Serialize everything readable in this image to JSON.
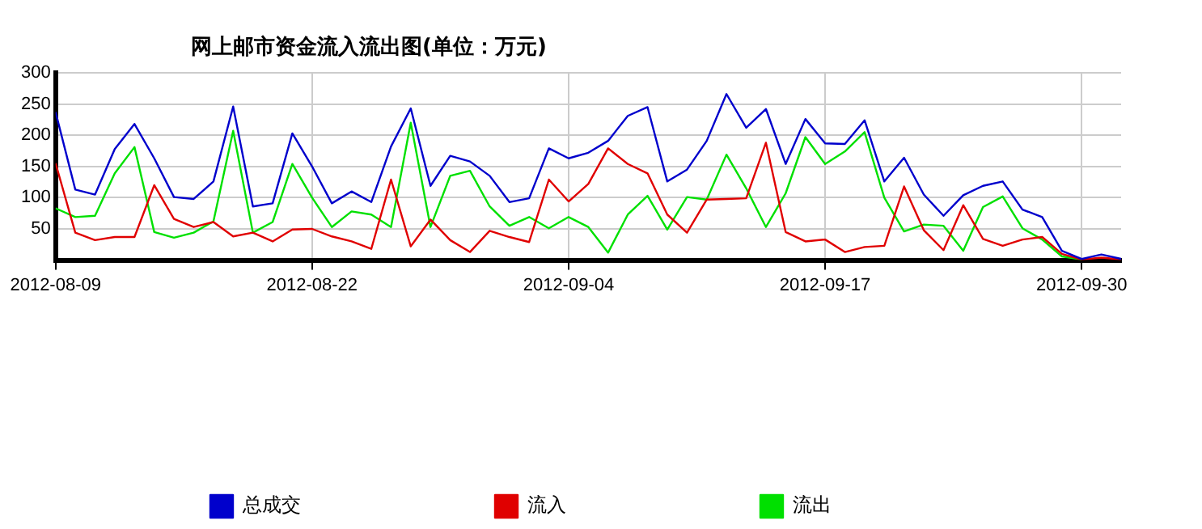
{
  "chart_data": {
    "type": "line",
    "title": "网上邮市资金流入流出图(单位：万元)",
    "x": [
      "2012-08-09",
      "2012-08-10",
      "2012-08-11",
      "2012-08-12",
      "2012-08-13",
      "2012-08-14",
      "2012-08-15",
      "2012-08-16",
      "2012-08-17",
      "2012-08-18",
      "2012-08-19",
      "2012-08-20",
      "2012-08-21",
      "2012-08-22",
      "2012-08-23",
      "2012-08-24",
      "2012-08-25",
      "2012-08-26",
      "2012-08-27",
      "2012-08-28",
      "2012-08-29",
      "2012-08-30",
      "2012-08-31",
      "2012-09-01",
      "2012-09-02",
      "2012-09-03",
      "2012-09-04",
      "2012-09-05",
      "2012-09-06",
      "2012-09-07",
      "2012-09-08",
      "2012-09-09",
      "2012-09-10",
      "2012-09-11",
      "2012-09-12",
      "2012-09-13",
      "2012-09-14",
      "2012-09-15",
      "2012-09-16",
      "2012-09-17",
      "2012-09-18",
      "2012-09-19",
      "2012-09-20",
      "2012-09-21",
      "2012-09-22",
      "2012-09-23",
      "2012-09-24",
      "2012-09-25",
      "2012-09-26",
      "2012-09-27",
      "2012-09-28",
      "2012-09-29",
      "2012-09-30",
      "2012-10-01",
      "2012-10-02"
    ],
    "series": [
      {
        "name": "总成交",
        "color": "#0000cc",
        "values": [
          237,
          113,
          105,
          178,
          218,
          163,
          101,
          98,
          126,
          246,
          86,
          91,
          203,
          150,
          91,
          110,
          93,
          182,
          243,
          119,
          167,
          158,
          135,
          93,
          99,
          179,
          163,
          172,
          191,
          231,
          245,
          126,
          145,
          191,
          266,
          212,
          242,
          154,
          226,
          187,
          186,
          224,
          126,
          164,
          105,
          71,
          104,
          119,
          126,
          81,
          69,
          15,
          2,
          9,
          2
        ]
      },
      {
        "name": "流入",
        "color": "#e00000",
        "values": [
          155,
          44,
          32,
          37,
          37,
          120,
          66,
          53,
          61,
          38,
          44,
          30,
          49,
          50,
          38,
          30,
          18,
          129,
          22,
          65,
          32,
          13,
          47,
          37,
          29,
          129,
          94,
          122,
          179,
          154,
          139,
          73,
          44,
          97,
          98,
          99,
          188,
          45,
          30,
          33,
          13,
          21,
          23,
          118,
          48,
          16,
          88,
          34,
          23,
          33,
          37,
          10,
          1,
          4,
          1
        ]
      },
      {
        "name": "流出",
        "color": "#00e000",
        "values": [
          83,
          69,
          71,
          139,
          181,
          45,
          36,
          44,
          62,
          207,
          44,
          61,
          154,
          100,
          53,
          78,
          73,
          53,
          220,
          53,
          135,
          143,
          86,
          55,
          69,
          51,
          69,
          53,
          12,
          73,
          103,
          49,
          101,
          97,
          169,
          115,
          53,
          107,
          197,
          154,
          174,
          205,
          100,
          46,
          57,
          55,
          15,
          85,
          102,
          51,
          33,
          6,
          1,
          null,
          null
        ]
      }
    ],
    "xlim": [
      "2012-08-09",
      "2012-10-02"
    ],
    "xticks": [
      "2012-08-09",
      "2012-08-22",
      "2012-09-04",
      "2012-09-17",
      "2012-09-30"
    ],
    "ylim": [
      0,
      300
    ],
    "yticks": [
      50,
      100,
      150,
      200,
      250,
      300
    ],
    "grid": true,
    "legend": "bottom",
    "marker": "none",
    "line_style": "solid"
  }
}
